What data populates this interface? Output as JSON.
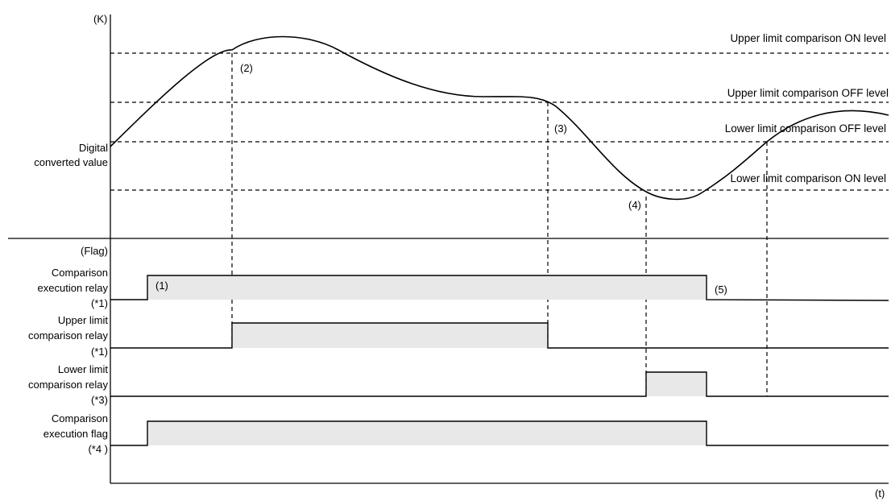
{
  "axes": {
    "y_unit": "(K)",
    "x_unit": "(t)",
    "flag_label": "(Flag)"
  },
  "value_label": [
    "Digital",
    "converted value"
  ],
  "levels": {
    "upper_on": "Upper limit comparison ON level",
    "upper_off": "Upper limit comparison OFF level",
    "lower_off": "Lower limit comparison OFF level",
    "lower_on": "Lower limit comparison ON level"
  },
  "markers": [
    "(1)",
    "(2)",
    "(3)",
    "(4)",
    "(5)"
  ],
  "signals": [
    {
      "name": "comparison-execution-relay",
      "lines": [
        "Comparison",
        "execution relay",
        "(*1)"
      ]
    },
    {
      "name": "upper-limit-comparison-relay",
      "lines": [
        "Upper limit",
        "comparison relay",
        "(*1)"
      ]
    },
    {
      "name": "lower-limit-comparison-relay",
      "lines": [
        "Lower limit",
        "comparison relay",
        "(*3)"
      ]
    },
    {
      "name": "comparison-execution-flag",
      "lines": [
        "Comparison",
        "execution flag",
        "(*4 )"
      ]
    }
  ]
}
